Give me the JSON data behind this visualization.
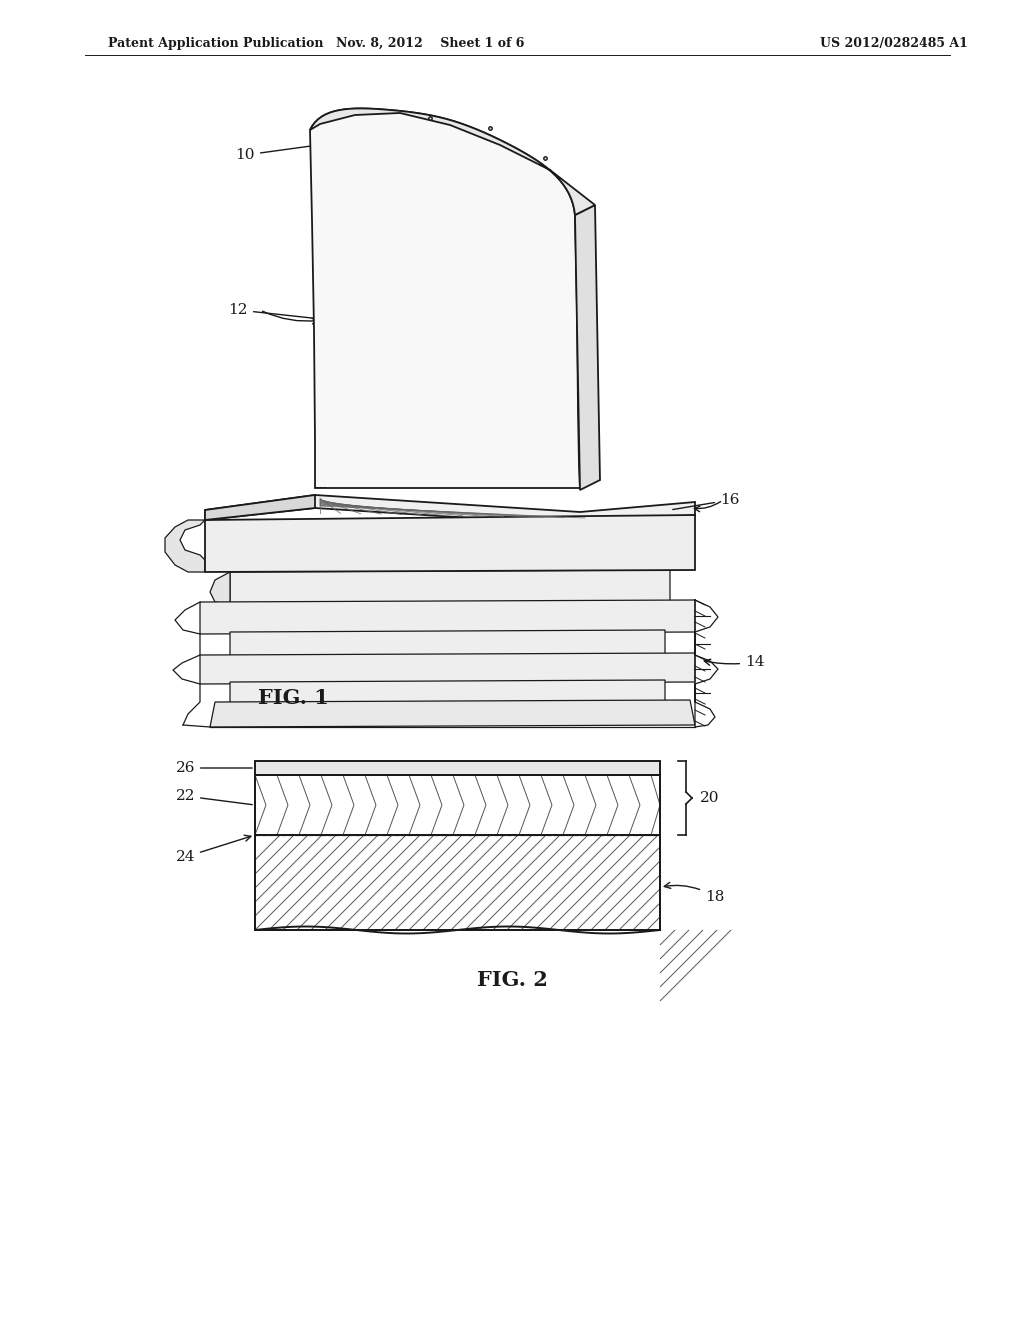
{
  "bg_color": "#ffffff",
  "header_left": "Patent Application Publication",
  "header_mid": "Nov. 8, 2012    Sheet 1 of 6",
  "header_right": "US 2012/0282485 A1",
  "fig1_label": "FIG. 1",
  "fig2_label": "FIG. 2",
  "line_color": "#1a1a1a",
  "fill_light": "#f2f2f2",
  "fill_mid": "#e4e4e4",
  "fill_dark": "#d5d5d5",
  "hatch_dark": "#444444"
}
